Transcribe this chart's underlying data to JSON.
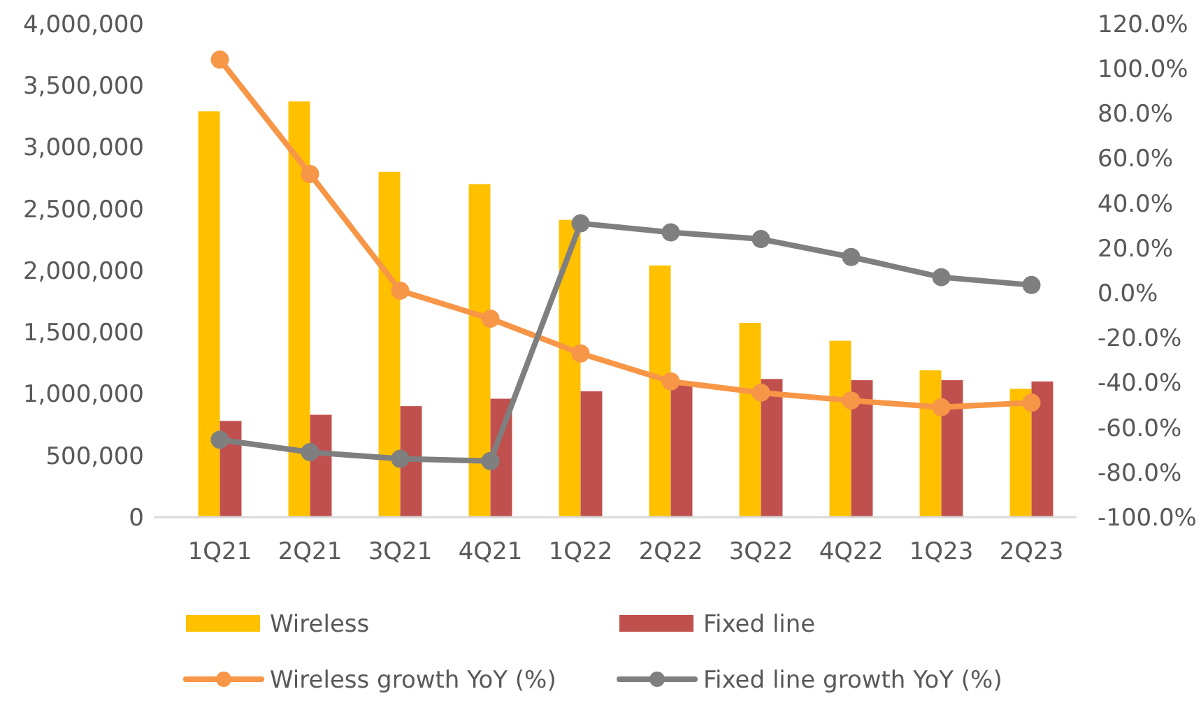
{
  "chart_data": {
    "type": "bar",
    "categories": [
      "1Q21",
      "2Q21",
      "3Q21",
      "4Q21",
      "1Q22",
      "2Q22",
      "3Q22",
      "4Q22",
      "1Q23",
      "2Q23"
    ],
    "series": [
      {
        "name": "Wireless",
        "color": "#ffc000",
        "values": [
          3290000,
          3370000,
          2800000,
          2700000,
          2410000,
          2040000,
          1575000,
          1430000,
          1190000,
          1040000
        ]
      },
      {
        "name": "Fixed line",
        "color": "#c0504d",
        "values": [
          780000,
          830000,
          900000,
          960000,
          1020000,
          1080000,
          1120000,
          1110000,
          1110000,
          1100000
        ]
      },
      {
        "name": "Wireless growth YoY (%)",
        "type": "line",
        "axis": "y2",
        "color": "#f79646",
        "values": [
          104,
          53,
          1,
          -11.5,
          -27,
          -39.5,
          -44.5,
          -48,
          -51,
          -49
        ]
      },
      {
        "name": "Fixed line growth YoY (%)",
        "type": "line",
        "axis": "y2",
        "color": "#7f7f7f",
        "values": [
          -65.5,
          -71,
          -74,
          -75,
          31,
          27,
          24,
          16,
          7,
          3.5
        ]
      }
    ],
    "ylim": [
      0,
      4000000
    ],
    "yticks": [
      {
        "value": 0,
        "label": "0"
      },
      {
        "value": 500000,
        "label": "500,000"
      },
      {
        "value": 1000000,
        "label": "1,000,000"
      },
      {
        "value": 1500000,
        "label": "1,500,000"
      },
      {
        "value": 2000000,
        "label": "2,000,000"
      },
      {
        "value": 2500000,
        "label": "2,500,000"
      },
      {
        "value": 3000000,
        "label": "3,000,000"
      },
      {
        "value": 3500000,
        "label": "3,500,000"
      },
      {
        "value": 4000000,
        "label": "4,000,000"
      }
    ],
    "y2lim": [
      -100,
      120
    ],
    "y2ticks": [
      {
        "value": -100,
        "label": "-100.0%"
      },
      {
        "value": -80,
        "label": "-80.0%"
      },
      {
        "value": -60,
        "label": "-60.0%"
      },
      {
        "value": -40,
        "label": "-40.0%"
      },
      {
        "value": -20,
        "label": "-20.0%"
      },
      {
        "value": 0,
        "label": "0.0%"
      },
      {
        "value": 20,
        "label": "20.0%"
      },
      {
        "value": 40,
        "label": "40.0%"
      },
      {
        "value": 60,
        "label": "60.0%"
      },
      {
        "value": 80,
        "label": "80.0%"
      },
      {
        "value": 100,
        "label": "100.0%"
      },
      {
        "value": 120,
        "label": "120.0%"
      }
    ],
    "grid": false,
    "legend": "bottom",
    "marker": "circle",
    "line_style": "solid"
  }
}
